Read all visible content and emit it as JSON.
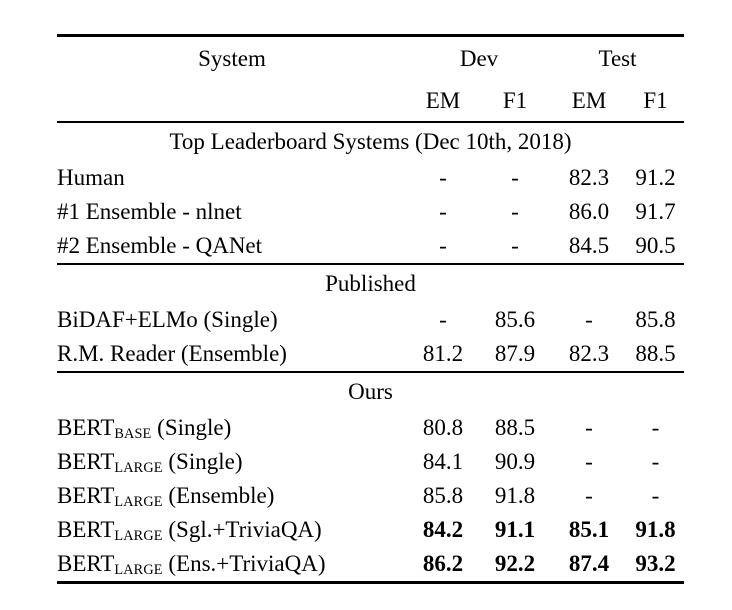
{
  "table": {
    "header": {
      "system": "System",
      "dev_group": "Dev",
      "test_group": "Test",
      "dev_em": "EM",
      "dev_f1": "F1",
      "test_em": "EM",
      "test_f1": "F1"
    },
    "sections": [
      {
        "title": "Top Leaderboard Systems (Dec 10th, 2018)",
        "rows": [
          {
            "system": [
              {
                "t": "Human"
              }
            ],
            "values": [
              "-",
              "-",
              "82.3",
              "91.2"
            ],
            "bold_values": false
          },
          {
            "system": [
              {
                "t": "#1 Ensemble - nlnet"
              }
            ],
            "values": [
              "-",
              "-",
              "86.0",
              "91.7"
            ],
            "bold_values": false
          },
          {
            "system": [
              {
                "t": "#2 Ensemble - QANet"
              }
            ],
            "values": [
              "-",
              "-",
              "84.5",
              "90.5"
            ],
            "bold_values": false
          }
        ]
      },
      {
        "title": "Published",
        "rows": [
          {
            "system": [
              {
                "t": "BiDAF+ELMo (Single)"
              }
            ],
            "values": [
              "-",
              "85.6",
              "-",
              "85.8"
            ],
            "bold_values": false
          },
          {
            "system": [
              {
                "t": "R.M. Reader (Ensemble)"
              }
            ],
            "values": [
              "81.2",
              "87.9",
              "82.3",
              "88.5"
            ],
            "bold_values": false
          }
        ]
      },
      {
        "title": "Ours",
        "rows": [
          {
            "system": [
              {
                "t": "BERT"
              },
              {
                "t": "BASE",
                "sub": true
              },
              {
                "t": " (Single)"
              }
            ],
            "values": [
              "80.8",
              "88.5",
              "-",
              "-"
            ],
            "bold_values": false
          },
          {
            "system": [
              {
                "t": "BERT"
              },
              {
                "t": "LARGE",
                "sub": true
              },
              {
                "t": " (Single)"
              }
            ],
            "values": [
              "84.1",
              "90.9",
              "-",
              "-"
            ],
            "bold_values": false
          },
          {
            "system": [
              {
                "t": "BERT"
              },
              {
                "t": "LARGE",
                "sub": true
              },
              {
                "t": " (Ensemble)"
              }
            ],
            "values": [
              "85.8",
              "91.8",
              "-",
              "-"
            ],
            "bold_values": false
          },
          {
            "system": [
              {
                "t": "BERT"
              },
              {
                "t": "LARGE",
                "sub": true
              },
              {
                "t": " (Sgl.+TriviaQA)"
              }
            ],
            "values": [
              "84.2",
              "91.1",
              "85.1",
              "91.8"
            ],
            "bold_values": true
          },
          {
            "system": [
              {
                "t": "BERT"
              },
              {
                "t": "LARGE",
                "sub": true
              },
              {
                "t": " (Ens.+TriviaQA)"
              }
            ],
            "values": [
              "86.2",
              "92.2",
              "87.4",
              "93.2"
            ],
            "bold_values": true
          }
        ]
      }
    ],
    "colors": {
      "text": "#000000",
      "background": "#ffffff",
      "rule": "#000000"
    }
  }
}
